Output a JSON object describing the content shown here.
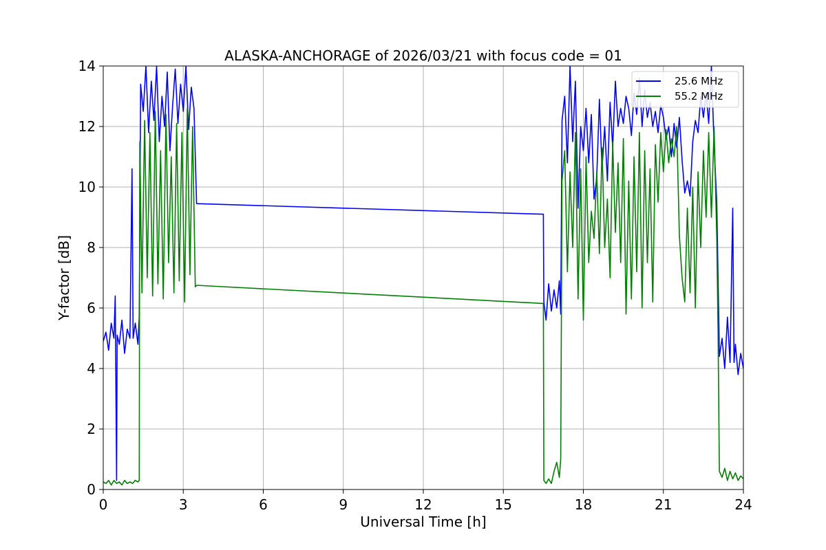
{
  "chart_data": {
    "type": "line",
    "title": "ALASKA-ANCHORAGE of 2026/03/21 with focus code = 01",
    "xlabel": "Universal Time [h]",
    "ylabel": "Y-factor [dB]",
    "xlim": [
      0,
      24
    ],
    "ylim": [
      0,
      14
    ],
    "xticks": [
      0,
      3,
      6,
      9,
      12,
      15,
      18,
      21,
      24
    ],
    "yticks": [
      0,
      2,
      4,
      6,
      8,
      10,
      12,
      14
    ],
    "grid": true,
    "legend_position": "top-right",
    "series": [
      {
        "name": "25.6 MHz",
        "color": "#0000ff",
        "points": [
          [
            0.0,
            4.9
          ],
          [
            0.1,
            5.2
          ],
          [
            0.2,
            4.6
          ],
          [
            0.3,
            5.5
          ],
          [
            0.4,
            5.0
          ],
          [
            0.45,
            6.4
          ],
          [
            0.5,
            0.3
          ],
          [
            0.52,
            5.1
          ],
          [
            0.6,
            4.8
          ],
          [
            0.7,
            5.6
          ],
          [
            0.8,
            4.5
          ],
          [
            0.9,
            5.3
          ],
          [
            1.0,
            5.0
          ],
          [
            1.08,
            10.6
          ],
          [
            1.12,
            5.0
          ],
          [
            1.2,
            5.5
          ],
          [
            1.3,
            4.8
          ],
          [
            1.35,
            5.7
          ],
          [
            1.4,
            13.4
          ],
          [
            1.5,
            12.5
          ],
          [
            1.6,
            14.0
          ],
          [
            1.7,
            11.8
          ],
          [
            1.8,
            13.5
          ],
          [
            1.9,
            12.2
          ],
          [
            2.0,
            14.0
          ],
          [
            2.1,
            11.5
          ],
          [
            2.2,
            13.0
          ],
          [
            2.3,
            12.0
          ],
          [
            2.4,
            13.8
          ],
          [
            2.5,
            11.2
          ],
          [
            2.6,
            12.7
          ],
          [
            2.7,
            13.9
          ],
          [
            2.8,
            12.1
          ],
          [
            2.9,
            13.4
          ],
          [
            3.0,
            12.5
          ],
          [
            3.1,
            14.0
          ],
          [
            3.2,
            11.9
          ],
          [
            3.3,
            13.3
          ],
          [
            3.4,
            12.6
          ],
          [
            3.5,
            9.45
          ],
          [
            16.5,
            9.1
          ],
          [
            16.52,
            6.2
          ],
          [
            16.6,
            5.6
          ],
          [
            16.7,
            6.8
          ],
          [
            16.8,
            5.9
          ],
          [
            16.9,
            6.6
          ],
          [
            17.0,
            6.0
          ],
          [
            17.1,
            6.9
          ],
          [
            17.15,
            5.8
          ],
          [
            17.2,
            12.2
          ],
          [
            17.3,
            13.0
          ],
          [
            17.4,
            10.8
          ],
          [
            17.5,
            14.0
          ],
          [
            17.6,
            11.5
          ],
          [
            17.7,
            13.5
          ],
          [
            17.8,
            9.3
          ],
          [
            17.9,
            12.0
          ],
          [
            18.0,
            11.2
          ],
          [
            18.1,
            12.6
          ],
          [
            18.2,
            10.8
          ],
          [
            18.3,
            12.4
          ],
          [
            18.4,
            9.6
          ],
          [
            18.5,
            10.3
          ],
          [
            18.6,
            12.9
          ],
          [
            18.7,
            10.6
          ],
          [
            18.8,
            12.0
          ],
          [
            18.9,
            10.2
          ],
          [
            19.0,
            12.8
          ],
          [
            19.1,
            11.3
          ],
          [
            19.2,
            13.5
          ],
          [
            19.3,
            12.0
          ],
          [
            19.4,
            12.6
          ],
          [
            19.5,
            12.1
          ],
          [
            19.6,
            13.0
          ],
          [
            19.7,
            12.6
          ],
          [
            19.8,
            11.7
          ],
          [
            19.9,
            13.1
          ],
          [
            20.0,
            12.4
          ],
          [
            20.1,
            13.6
          ],
          [
            20.2,
            12.0
          ],
          [
            20.3,
            13.2
          ],
          [
            20.4,
            12.3
          ],
          [
            20.5,
            12.8
          ],
          [
            20.6,
            12.0
          ],
          [
            20.7,
            12.5
          ],
          [
            20.8,
            11.8
          ],
          [
            20.9,
            12.7
          ],
          [
            21.0,
            12.3
          ],
          [
            21.1,
            11.6
          ],
          [
            21.2,
            12.0
          ],
          [
            21.3,
            11.0
          ],
          [
            21.4,
            12.1
          ],
          [
            21.5,
            11.3
          ],
          [
            21.6,
            12.3
          ],
          [
            21.7,
            10.9
          ],
          [
            21.8,
            9.8
          ],
          [
            21.9,
            10.2
          ],
          [
            22.0,
            9.7
          ],
          [
            22.1,
            11.5
          ],
          [
            22.2,
            12.2
          ],
          [
            22.3,
            11.8
          ],
          [
            22.4,
            13.0
          ],
          [
            22.5,
            12.3
          ],
          [
            22.6,
            13.1
          ],
          [
            22.7,
            12.1
          ],
          [
            22.8,
            14.0
          ],
          [
            22.9,
            11.4
          ],
          [
            23.0,
            9.5
          ],
          [
            23.1,
            4.4
          ],
          [
            23.2,
            5.0
          ],
          [
            23.3,
            4.0
          ],
          [
            23.4,
            5.7
          ],
          [
            23.5,
            4.2
          ],
          [
            23.6,
            9.3
          ],
          [
            23.65,
            4.2
          ],
          [
            23.7,
            4.8
          ],
          [
            23.8,
            3.8
          ],
          [
            23.9,
            4.5
          ],
          [
            24.0,
            4.0
          ]
        ]
      },
      {
        "name": "55.2 MHz",
        "color": "#008000",
        "points": [
          [
            0.0,
            0.25
          ],
          [
            0.1,
            0.2
          ],
          [
            0.2,
            0.3
          ],
          [
            0.3,
            0.15
          ],
          [
            0.4,
            0.3
          ],
          [
            0.5,
            0.2
          ],
          [
            0.6,
            0.25
          ],
          [
            0.7,
            0.15
          ],
          [
            0.8,
            0.3
          ],
          [
            0.9,
            0.2
          ],
          [
            1.0,
            0.25
          ],
          [
            1.1,
            0.2
          ],
          [
            1.2,
            0.3
          ],
          [
            1.3,
            0.25
          ],
          [
            1.35,
            0.3
          ],
          [
            1.37,
            11.5
          ],
          [
            1.45,
            6.5
          ],
          [
            1.55,
            12.2
          ],
          [
            1.65,
            7.0
          ],
          [
            1.75,
            11.8
          ],
          [
            1.85,
            6.4
          ],
          [
            1.95,
            12.5
          ],
          [
            2.05,
            6.8
          ],
          [
            2.15,
            11.2
          ],
          [
            2.25,
            6.3
          ],
          [
            2.35,
            12.4
          ],
          [
            2.45,
            7.5
          ],
          [
            2.55,
            11.0
          ],
          [
            2.65,
            6.5
          ],
          [
            2.75,
            12.1
          ],
          [
            2.85,
            6.9
          ],
          [
            2.95,
            11.8
          ],
          [
            3.05,
            6.2
          ],
          [
            3.15,
            12.6
          ],
          [
            3.25,
            7.1
          ],
          [
            3.35,
            12.0
          ],
          [
            3.45,
            6.7
          ],
          [
            3.5,
            6.75
          ],
          [
            16.5,
            6.15
          ],
          [
            16.52,
            0.3
          ],
          [
            16.6,
            0.2
          ],
          [
            16.7,
            0.35
          ],
          [
            16.8,
            0.2
          ],
          [
            16.9,
            0.6
          ],
          [
            17.0,
            0.9
          ],
          [
            17.1,
            0.4
          ],
          [
            17.15,
            1.0
          ],
          [
            17.2,
            10.2
          ],
          [
            17.3,
            11.2
          ],
          [
            17.4,
            7.2
          ],
          [
            17.5,
            10.5
          ],
          [
            17.6,
            8.0
          ],
          [
            17.7,
            11.8
          ],
          [
            17.8,
            6.3
          ],
          [
            17.9,
            10.6
          ],
          [
            18.0,
            5.6
          ],
          [
            18.1,
            11.0
          ],
          [
            18.2,
            7.5
          ],
          [
            18.3,
            9.2
          ],
          [
            18.4,
            8.3
          ],
          [
            18.5,
            10.5
          ],
          [
            18.6,
            7.8
          ],
          [
            18.7,
            11.3
          ],
          [
            18.8,
            8.0
          ],
          [
            18.9,
            9.6
          ],
          [
            19.0,
            7.0
          ],
          [
            19.1,
            11.5
          ],
          [
            19.2,
            8.5
          ],
          [
            19.3,
            10.8
          ],
          [
            19.4,
            7.5
          ],
          [
            19.5,
            11.6
          ],
          [
            19.6,
            5.8
          ],
          [
            19.7,
            10.2
          ],
          [
            19.8,
            6.3
          ],
          [
            19.9,
            11.0
          ],
          [
            20.0,
            7.2
          ],
          [
            20.1,
            11.8
          ],
          [
            20.2,
            6.0
          ],
          [
            20.3,
            11.2
          ],
          [
            20.4,
            7.5
          ],
          [
            20.5,
            10.6
          ],
          [
            20.6,
            6.2
          ],
          [
            20.7,
            11.4
          ],
          [
            20.8,
            9.5
          ],
          [
            20.9,
            11.8
          ],
          [
            21.0,
            10.5
          ],
          [
            21.1,
            11.9
          ],
          [
            21.2,
            10.8
          ],
          [
            21.3,
            11.6
          ],
          [
            21.4,
            11.0
          ],
          [
            21.5,
            12.0
          ],
          [
            21.6,
            8.4
          ],
          [
            21.7,
            7.0
          ],
          [
            21.8,
            6.2
          ],
          [
            21.9,
            9.3
          ],
          [
            22.0,
            6.5
          ],
          [
            22.1,
            10.0
          ],
          [
            22.2,
            6.0
          ],
          [
            22.3,
            10.5
          ],
          [
            22.4,
            8.0
          ],
          [
            22.5,
            11.2
          ],
          [
            22.6,
            9.0
          ],
          [
            22.7,
            11.8
          ],
          [
            22.8,
            9.0
          ],
          [
            22.9,
            12.0
          ],
          [
            23.0,
            8.3
          ],
          [
            23.05,
            5.2
          ],
          [
            23.1,
            0.6
          ],
          [
            23.2,
            0.4
          ],
          [
            23.3,
            0.7
          ],
          [
            23.4,
            0.3
          ],
          [
            23.5,
            0.6
          ],
          [
            23.6,
            0.35
          ],
          [
            23.7,
            0.55
          ],
          [
            23.8,
            0.3
          ],
          [
            23.9,
            0.45
          ],
          [
            24.0,
            0.35
          ]
        ]
      }
    ]
  }
}
